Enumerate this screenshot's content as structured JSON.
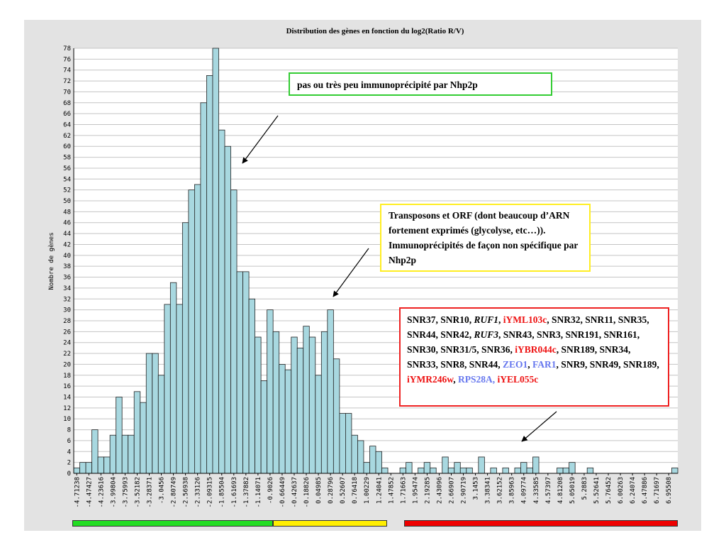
{
  "chart_data": {
    "type": "bar",
    "title": "Distribution des gènes en fonction du log2(Ratio R/V)",
    "xlabel": "",
    "ylabel": "Nombre de gènes",
    "ylim": [
      0,
      78
    ],
    "yticks": [
      0,
      2,
      4,
      6,
      8,
      10,
      12,
      14,
      16,
      18,
      20,
      22,
      24,
      26,
      28,
      30,
      32,
      34,
      36,
      38,
      40,
      42,
      44,
      46,
      48,
      50,
      52,
      54,
      56,
      58,
      60,
      62,
      64,
      66,
      68,
      70,
      72,
      74,
      76,
      78
    ],
    "grid": "horizontal",
    "bar_color": "#a8d8e0",
    "tick_labels": [
      "-4.71238",
      "-4.47427",
      "-4.23616",
      "-3.99804",
      "-3.75993",
      "-3.52182",
      "-3.28371",
      "-3.0456",
      "-2.80749",
      "-2.56938",
      "-2.33126",
      "-2.09315",
      "-1.85504",
      "-1.61693",
      "-1.37882",
      "-1.14071",
      "-0.9026",
      "-0.66449",
      "-0.42637",
      "-0.18826",
      "0.04985",
      "0.28796",
      "0.52607",
      "0.76418",
      "1.00229",
      "1.24041",
      "1.47852",
      "1.71663",
      "1.95474",
      "2.19285",
      "2.43096",
      "2.66907",
      "2.90719",
      "3.1453",
      "3.38341",
      "3.62152",
      "3.85963",
      "4.09774",
      "4.33585",
      "4.57397",
      "4.81208",
      "5.05019",
      "5.2883",
      "5.52641",
      "5.76452",
      "6.00263",
      "6.24074",
      "6.47886",
      "6.71697",
      "6.95508"
    ],
    "values": [
      1,
      2,
      2,
      8,
      3,
      3,
      7,
      14,
      7,
      7,
      15,
      13,
      22,
      22,
      18,
      31,
      35,
      31,
      46,
      52,
      53,
      68,
      73,
      78,
      63,
      60,
      52,
      37,
      37,
      32,
      25,
      17,
      30,
      26,
      20,
      19,
      25,
      23,
      27,
      25,
      18,
      26,
      30,
      21,
      11,
      11,
      7,
      6,
      2,
      5,
      4,
      1,
      0,
      0,
      1,
      2,
      0,
      1,
      2,
      1,
      0,
      3,
      1,
      2,
      1,
      1,
      0,
      3,
      0,
      1,
      0,
      1,
      0,
      1,
      2,
      1,
      3,
      0,
      0,
      0,
      1,
      1,
      2,
      0,
      0,
      1,
      0,
      0,
      0,
      0,
      0,
      0,
      0,
      0,
      0,
      0,
      0,
      0,
      0,
      1
    ],
    "annotations": [
      {
        "text": "pas ou très peu immunoprécipité par Nhp2p",
        "border": "#33cc33"
      },
      {
        "text": "Transposons et ORF (dont beaucoup d’ARN fortement exprimés (glycolyse, etc…)). Immunoprécipités de façon non spécifique par Nhp2p",
        "border": "#ffee22"
      },
      {
        "border": "#ee2222",
        "segments": [
          {
            "t": "SNR37, SNR10, "
          },
          {
            "t": "RUF1",
            "i": true
          },
          {
            "t": ", "
          },
          {
            "t": "iYML103c",
            "c": "#ee1111"
          },
          {
            "t": ", SNR32, SNR11, SNR35, SNR44, SNR42, "
          },
          {
            "t": "RUF3",
            "i": true
          },
          {
            "t": ", SNR43, SNR3, SNR191, SNR161, SNR30, SNR31/5, SNR36, "
          },
          {
            "t": "iYBR044c",
            "c": "#ee1111"
          },
          {
            "t": ", SNR189, SNR34, SNR33, SNR8, SNR44, "
          },
          {
            "t": "ZEO1",
            "c": "#6677ee"
          },
          {
            "t": ", "
          },
          {
            "t": "FAR1",
            "c": "#6677ee"
          },
          {
            "t": ", SNR9, SNR49, SNR189, "
          },
          {
            "t": "iYMR246w",
            "c": "#ee1111"
          },
          {
            "t": ", "
          },
          {
            "t": "RPS28A, ",
            "c": "#6677ee"
          },
          {
            "t": "iYEL055c",
            "c": "#ee1111"
          }
        ]
      }
    ],
    "range_bar_colors": [
      "#22dd22",
      "#ffee00",
      "#ee0000"
    ]
  }
}
